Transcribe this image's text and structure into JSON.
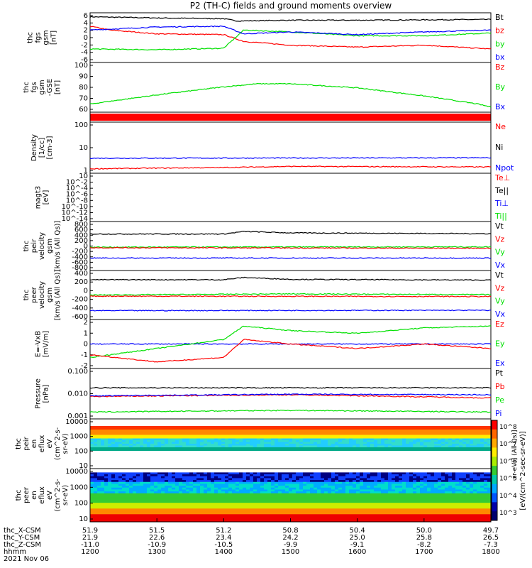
{
  "title": "P2 (TH-C) fields and ground moments overview",
  "colors": {
    "black": "#000000",
    "red": "#ff0000",
    "green": "#00e000",
    "blue": "#0000ff"
  },
  "x_axis": {
    "rows": [
      {
        "label": "thc_X-CSM",
        "values": [
          "51.9",
          "51.5",
          "51.2",
          "50.8",
          "50.4",
          "50.0",
          "49.7"
        ]
      },
      {
        "label": "thc_Y-CSM",
        "values": [
          "21.9",
          "22.6",
          "23.4",
          "24.2",
          "25.0",
          "25.8",
          "26.5"
        ]
      },
      {
        "label": "thc_Z-CSM",
        "values": [
          "-11.0",
          "-10.9",
          "-10.5",
          "-9.9",
          "-9.1",
          "-8.2",
          "-7.3"
        ]
      },
      {
        "label": "hhmm",
        "values": [
          "1200",
          "1300",
          "1400",
          "1500",
          "1600",
          "1700",
          "1800"
        ]
      }
    ],
    "date": "2021 Nov 06"
  },
  "colorbar": {
    "title": "[eV/(cm^2-sec-sr-eV)]",
    "overlay_text": "sr-eV)] (All Qs)]",
    "ticks": [
      "10^8",
      "10^7",
      "10^6",
      "10^5",
      "10^4",
      "10^3"
    ]
  },
  "chart_data": [
    {
      "type": "line",
      "panel": "fgs-gsm",
      "ylabel": [
        "thc",
        "fgs",
        "gsm",
        "[nT]"
      ],
      "yticks": [
        "6",
        "4",
        "2",
        "0",
        "-2",
        "-4",
        "-6"
      ],
      "ylim": [
        -6,
        6
      ],
      "legend": [
        {
          "name": "Bt",
          "color": "#000000"
        },
        {
          "name": "bz",
          "color": "#ff0000"
        },
        {
          "name": "by",
          "color": "#00e000"
        },
        {
          "name": "bx",
          "color": "#0000ff"
        }
      ],
      "series": [
        {
          "name": "Bt",
          "x": [
            1200,
            1300,
            1400,
            1420,
            1500,
            1600,
            1700,
            1800
          ],
          "y": [
            5.5,
            5.2,
            5.0,
            4.4,
            4.6,
            4.6,
            4.7,
            4.8
          ]
        },
        {
          "name": "bz",
          "x": [
            1200,
            1230,
            1300,
            1400,
            1430,
            1500,
            1600,
            1700,
            1800
          ],
          "y": [
            3.0,
            2.0,
            1.0,
            0.8,
            -1.0,
            -2.0,
            -2.5,
            -2.0,
            -3.0
          ]
        },
        {
          "name": "by",
          "x": [
            1200,
            1300,
            1400,
            1430,
            1500,
            1600,
            1700,
            1800
          ],
          "y": [
            -3.0,
            -3.2,
            -2.8,
            2.0,
            1.5,
            0.5,
            0.5,
            1.2
          ]
        },
        {
          "name": "bx",
          "x": [
            1200,
            1300,
            1400,
            1430,
            1500,
            1600,
            1700,
            1800
          ],
          "y": [
            2.0,
            2.8,
            3.0,
            1.0,
            1.5,
            0.8,
            1.5,
            2.0
          ]
        }
      ]
    },
    {
      "type": "line",
      "panel": "fgs-gsm-btot",
      "ylabel": [
        "thc",
        "fgs",
        "gsm",
        "-GSE",
        "[nT]"
      ],
      "yticks": [
        "100",
        "90",
        "80",
        "70",
        "60"
      ],
      "ylim": [
        55,
        100
      ],
      "legend": [
        {
          "name": "Bz",
          "color": "#ff0000"
        },
        {
          "name": "By",
          "color": "#00e000"
        },
        {
          "name": "Bx",
          "color": "#0000ff"
        }
      ],
      "series": [
        {
          "name": "By",
          "x": [
            1200,
            1300,
            1400,
            1450,
            1500,
            1600,
            1700,
            1780,
            1800
          ],
          "y": [
            61,
            70,
            78,
            81,
            81,
            77,
            69,
            61,
            58
          ]
        }
      ]
    },
    {
      "type": "line",
      "panel": "density",
      "ylabel": [
        "Density",
        "[1/cc]",
        "[cm-3]"
      ],
      "yticks": [
        "100",
        "10",
        "1"
      ],
      "scale": "log",
      "ylim": [
        1,
        200
      ],
      "legend": [
        {
          "name": "Ne",
          "color": "#ff0000"
        },
        {
          "name": "Ni",
          "color": "#000000"
        },
        {
          "name": "Npot",
          "color": "#0000ff"
        }
      ],
      "series": [
        {
          "name": "Npot",
          "x": [
            1200,
            1800
          ],
          "y": [
            4.3,
            4.5
          ]
        },
        {
          "name": "Ne",
          "x": [
            1200,
            1400,
            1500,
            1800
          ],
          "y": [
            1.3,
            1.5,
            1.7,
            1.6
          ]
        }
      ]
    },
    {
      "type": "line",
      "panel": "magt3",
      "ylabel": [
        "magt3",
        "[eV]"
      ],
      "yticks": [
        "10",
        "10^-2",
        "10^-4",
        "10^-6",
        "10^-8",
        "10^-10",
        "10^-12",
        "10^-14"
      ],
      "scale": "log",
      "legend": [
        {
          "name": "Te⊥",
          "color": "#ff0000"
        },
        {
          "name": "Te||",
          "color": "#000000"
        },
        {
          "name": "Ti⊥",
          "color": "#0000ff"
        },
        {
          "name": "Ti||",
          "color": "#00e000"
        }
      ],
      "series": []
    },
    {
      "type": "line",
      "panel": "peir-velocity",
      "ylabel": [
        "thc",
        "peir",
        "velocity",
        "gsm",
        "[km/s (All Qs)]"
      ],
      "yticks": [
        "800",
        "600",
        "400",
        "200",
        "0",
        "-200",
        "-400",
        "-600",
        "-800"
      ],
      "ylim": [
        -800,
        800
      ],
      "legend": [
        {
          "name": "Vt",
          "color": "#000000"
        },
        {
          "name": "Vz",
          "color": "#ff0000"
        },
        {
          "name": "Vy",
          "color": "#00e000"
        },
        {
          "name": "Vx",
          "color": "#0000ff"
        }
      ],
      "series": [
        {
          "name": "Vt",
          "x": [
            1200,
            1400,
            1430,
            1500,
            1800
          ],
          "y": [
            430,
            430,
            520,
            470,
            440
          ]
        },
        {
          "name": "Vy",
          "x": [
            1200,
            1800
          ],
          "y": [
            -40,
            -30
          ]
        },
        {
          "name": "Vz",
          "x": [
            1200,
            1800
          ],
          "y": [
            -60,
            -80
          ]
        },
        {
          "name": "Vx",
          "x": [
            1200,
            1800
          ],
          "y": [
            -430,
            -430
          ]
        }
      ]
    },
    {
      "type": "line",
      "panel": "peer-velocity",
      "ylabel": [
        "thc",
        "peer",
        "velocity",
        "gsm",
        "[km/s (All Qs)]"
      ],
      "yticks": [
        "400",
        "200",
        "0",
        "-200",
        "-400",
        "-600"
      ],
      "ylim": [
        -600,
        600
      ],
      "legend": [
        {
          "name": "Vt",
          "color": "#000000"
        },
        {
          "name": "Vz",
          "color": "#ff0000"
        },
        {
          "name": "Vy",
          "color": "#00e000"
        },
        {
          "name": "Vx",
          "color": "#0000ff"
        }
      ],
      "series": [
        {
          "name": "Vt",
          "x": [
            1200,
            1400,
            1430,
            1500,
            1800
          ],
          "y": [
            410,
            410,
            470,
            420,
            400
          ]
        },
        {
          "name": "Vy",
          "x": [
            1200,
            1500,
            1800
          ],
          "y": [
            0,
            30,
            10
          ]
        },
        {
          "name": "Vz",
          "x": [
            1200,
            1800
          ],
          "y": [
            -30,
            -40
          ]
        },
        {
          "name": "Vx",
          "x": [
            1200,
            1800
          ],
          "y": [
            -420,
            -410
          ]
        }
      ]
    },
    {
      "type": "line",
      "panel": "E-VxB",
      "ylabel": [
        "E=-VxB",
        "[mV/m]"
      ],
      "yticks": [
        "2",
        "1",
        "0",
        "-1",
        "-2"
      ],
      "ylim": [
        -2.5,
        2.5
      ],
      "legend": [
        {
          "name": "Ez",
          "color": "#ff0000"
        },
        {
          "name": "Ey",
          "color": "#00e000"
        },
        {
          "name": "Ex",
          "color": "#0000ff"
        }
      ],
      "series": [
        {
          "name": "Ex",
          "x": [
            1200,
            1800
          ],
          "y": [
            0,
            0
          ]
        },
        {
          "name": "Ey",
          "x": [
            1200,
            1300,
            1400,
            1430,
            1500,
            1600,
            1700,
            1800
          ],
          "y": [
            -1.5,
            -0.5,
            0.5,
            2.0,
            1.5,
            1.2,
            1.8,
            2.0
          ]
        },
        {
          "name": "Ez",
          "x": [
            1200,
            1300,
            1400,
            1430,
            1500,
            1600,
            1700,
            1800
          ],
          "y": [
            -1.2,
            -2.0,
            -1.5,
            0.5,
            0,
            -0.5,
            0,
            -0.5
          ]
        }
      ]
    },
    {
      "type": "line",
      "panel": "pressure",
      "ylabel": [
        "Pressure",
        "[nPa]"
      ],
      "yticks": [
        "0.100",
        "0.010",
        "0.001"
      ],
      "scale": "log",
      "ylim": [
        0.001,
        0.1
      ],
      "legend": [
        {
          "name": "Pt",
          "color": "#000000"
        },
        {
          "name": "Pb",
          "color": "#ff0000"
        },
        {
          "name": "Pe",
          "color": "#00e000"
        },
        {
          "name": "Pi",
          "color": "#0000ff"
        }
      ],
      "series": [
        {
          "name": "Pt",
          "x": [
            1200,
            1800
          ],
          "y": [
            0.018,
            0.018
          ]
        },
        {
          "name": "Pb",
          "x": [
            1200,
            1500,
            1800
          ],
          "y": [
            0.0075,
            0.009,
            0.0065
          ]
        },
        {
          "name": "Pi",
          "x": [
            1200,
            1500,
            1800
          ],
          "y": [
            0.008,
            0.0095,
            0.009
          ]
        },
        {
          "name": "Pe",
          "x": [
            1200,
            1500,
            1800
          ],
          "y": [
            0.0016,
            0.0019,
            0.0016
          ]
        }
      ]
    },
    {
      "type": "heatmap",
      "panel": "peir-en-eflux",
      "ylabel": [
        "thc",
        "peir",
        "en",
        "eflux",
        "eV",
        "(cm^2-s-",
        "sr-eV)"
      ],
      "yticks": [
        "10000",
        "1000",
        "100",
        "10"
      ],
      "scale": "log",
      "ylim": [
        5,
        20000
      ]
    },
    {
      "type": "heatmap",
      "panel": "peer-en-eflux",
      "ylabel": [
        "thc",
        "peer",
        "en",
        "eflux",
        "eV",
        "(cm^2-s-",
        "sr-eV)"
      ],
      "yticks": [
        "10000",
        "1000",
        "100",
        "10"
      ],
      "scale": "log",
      "ylim": [
        5,
        20000
      ]
    }
  ]
}
